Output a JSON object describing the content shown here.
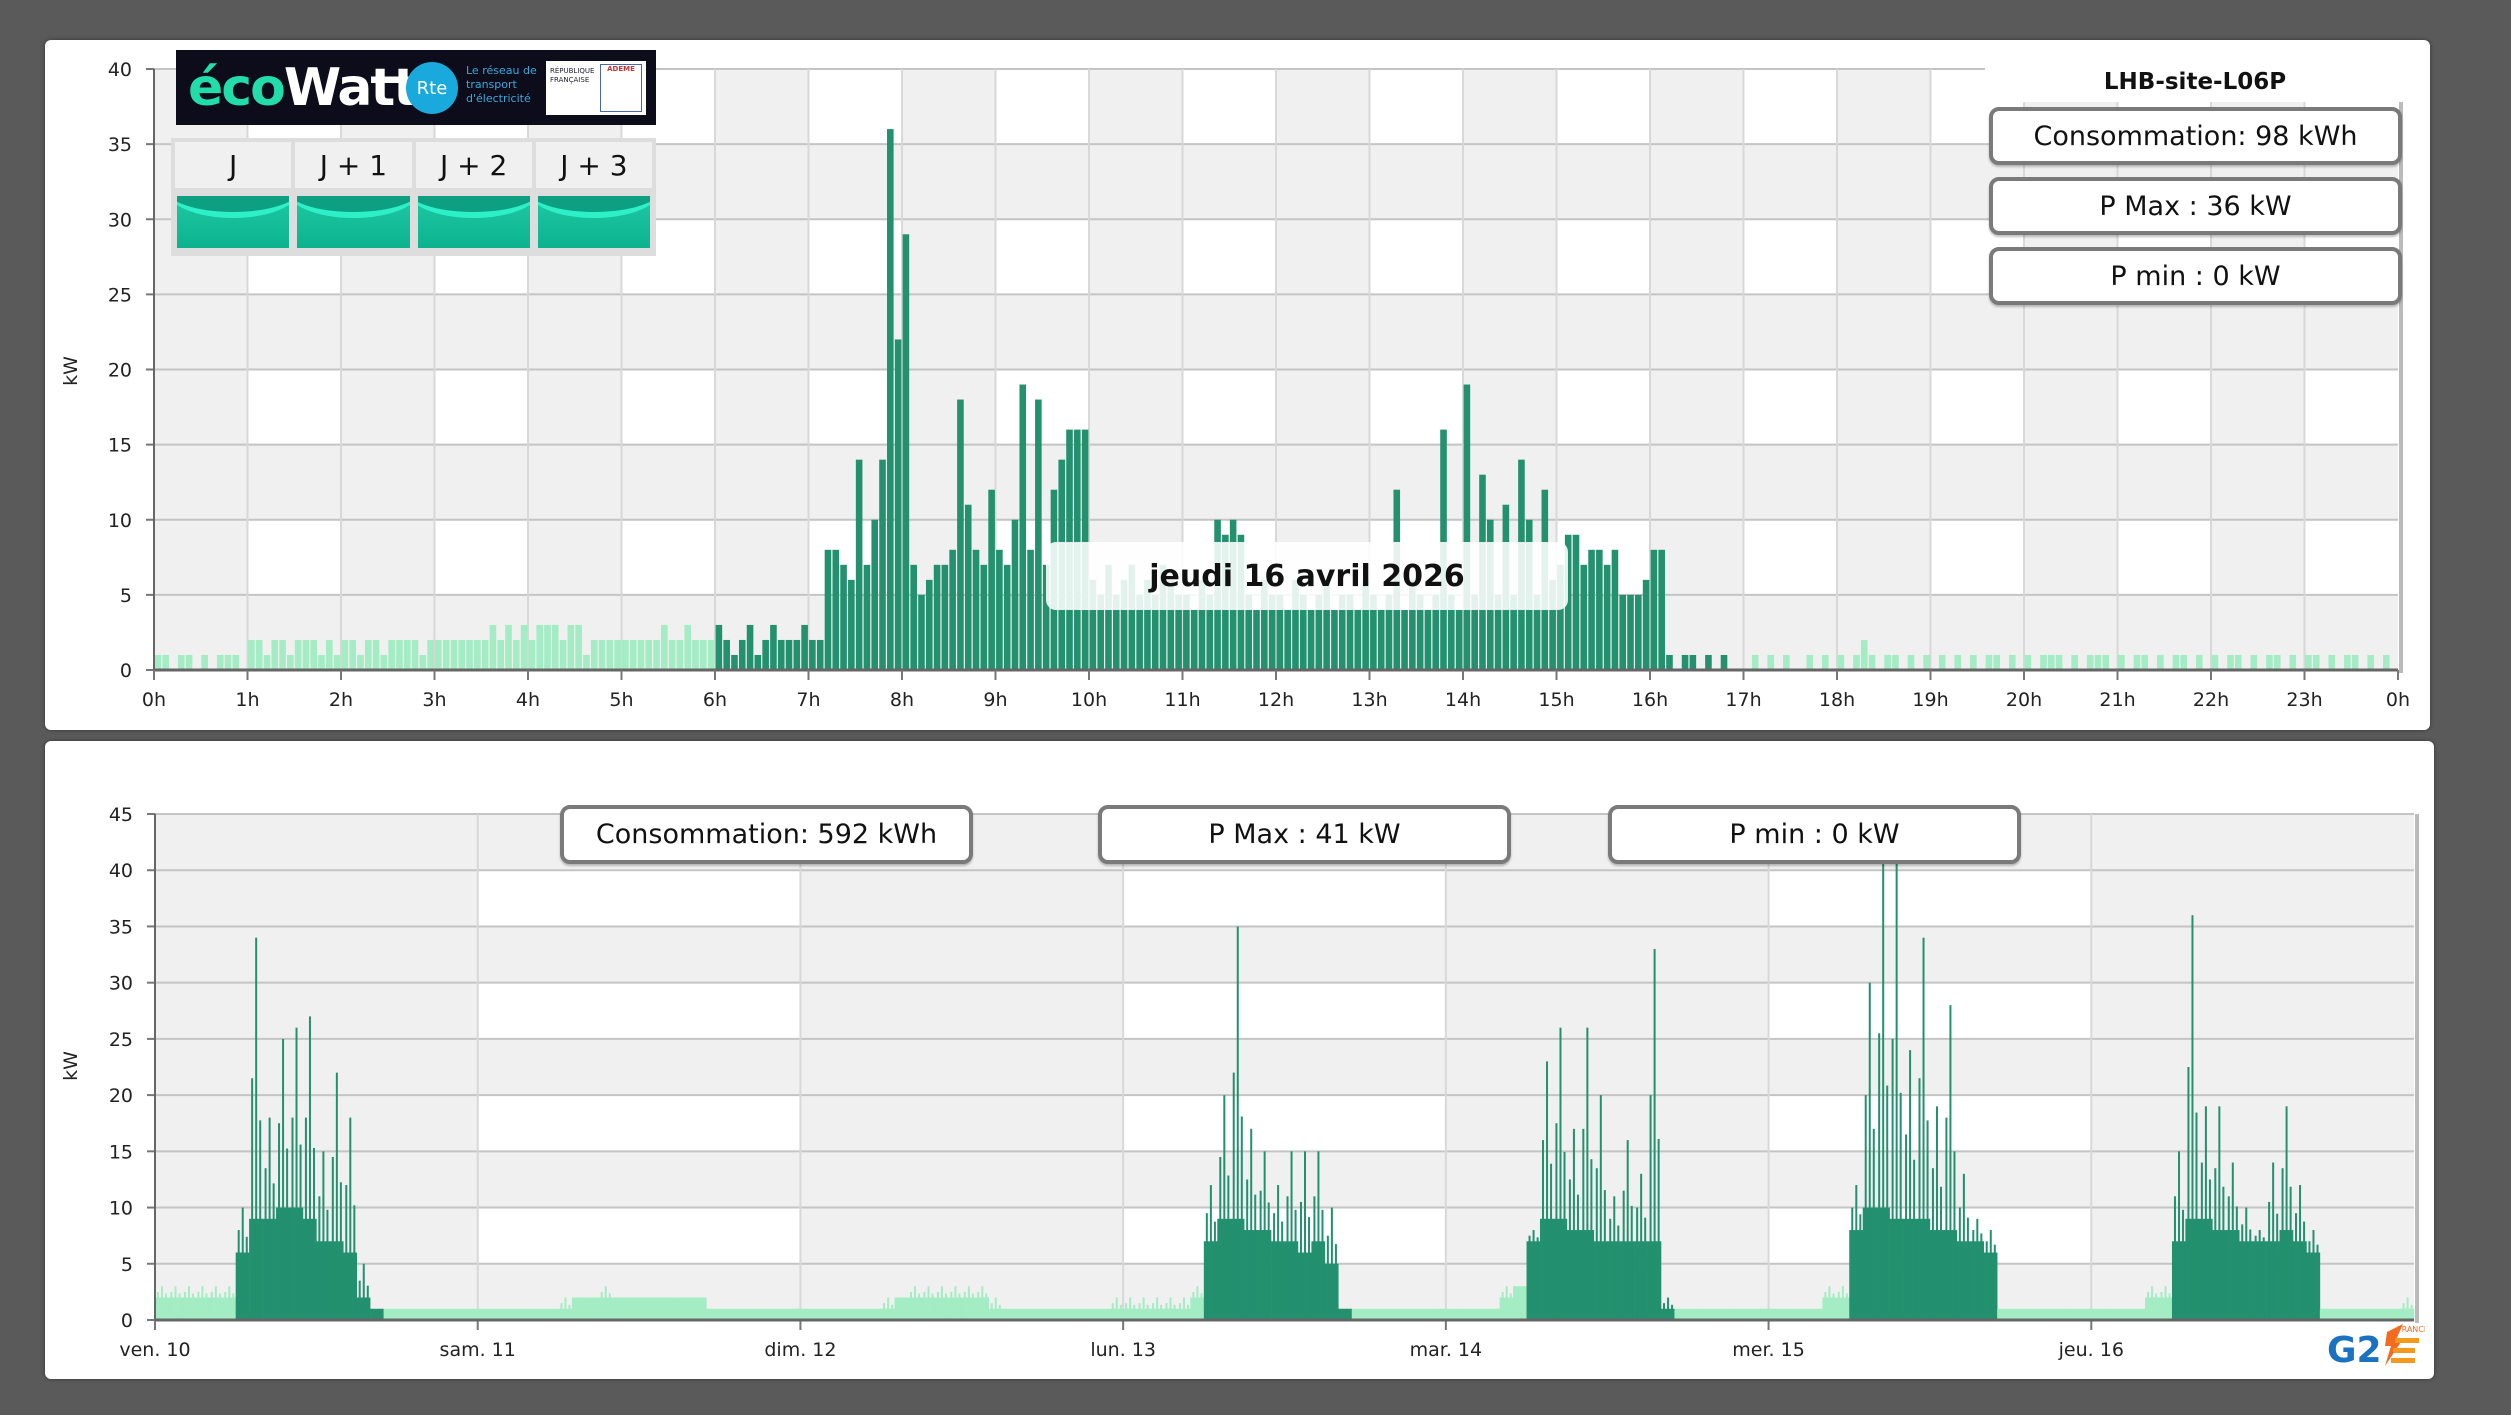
{
  "ecowatt": {
    "brand": "écoWatt",
    "rte_logo": "Rte",
    "rte_tagline": "Le réseau de transport d'électricité",
    "republique": "RÉPUBLIQUE FRANÇAISE",
    "ademe": "ADEME",
    "days": [
      {
        "label": "J",
        "signal": "green"
      },
      {
        "label": "J + 1",
        "signal": "green"
      },
      {
        "label": "J + 2",
        "signal": "green"
      },
      {
        "label": "J + 3",
        "signal": "green"
      }
    ]
  },
  "site": {
    "name": "LHB-site-L06P"
  },
  "daily_stats": {
    "consumption": "Consommation: 98 kWh",
    "pmax": "P Max :  36 kW",
    "pmin": "P min : 0 kW"
  },
  "date_tooltip": "jeudi 16 avril 2026",
  "weekly_stats": {
    "consumption": "Consommation: 592 kWh",
    "pmax": "P Max :  41 kW",
    "pmin": "P min : 0 kW"
  },
  "footer_logo": "G2E FRANCE",
  "colors": {
    "active": "#23906e",
    "idle": "#a3ecc4",
    "band": "#f0f0f0"
  },
  "chart_data": [
    {
      "type": "bar",
      "title": "Daily load curve",
      "ylabel": "kW",
      "ylim": [
        0,
        40
      ],
      "yticks": [
        "0",
        "5",
        "10",
        "15",
        "20",
        "25",
        "30",
        "35",
        "40"
      ],
      "xticks": [
        "0h",
        "1h",
        "2h",
        "3h",
        "4h",
        "5h",
        "6h",
        "7h",
        "8h",
        "9h",
        "10h",
        "11h",
        "12h",
        "13h",
        "14h",
        "15h",
        "16h",
        "17h",
        "18h",
        "19h",
        "20h",
        "21h",
        "22h",
        "23h",
        "0h"
      ],
      "interval_minutes": 5,
      "active_hours": [
        6,
        17
      ],
      "hourly_values": [
        [
          1,
          1,
          0,
          1,
          1,
          0,
          1,
          0,
          1,
          1,
          1,
          0
        ],
        [
          2,
          2,
          1,
          2,
          2,
          1,
          2,
          2,
          2,
          1,
          2,
          1
        ],
        [
          2,
          2,
          1,
          2,
          2,
          1,
          2,
          2,
          2,
          2,
          1,
          2
        ],
        [
          2,
          2,
          2,
          2,
          2,
          2,
          2,
          3,
          2,
          3,
          2,
          3
        ],
        [
          2,
          3,
          3,
          3,
          2,
          3,
          3,
          1,
          2,
          2,
          2,
          2
        ],
        [
          2,
          2,
          2,
          2,
          2,
          3,
          2,
          2,
          3,
          2,
          2,
          2
        ],
        [
          3,
          2,
          1,
          2,
          3,
          1,
          2,
          3,
          2,
          2,
          2,
          3
        ],
        [
          2,
          2,
          8,
          8,
          7,
          6,
          14,
          7,
          10,
          14,
          36,
          22
        ],
        [
          29,
          7,
          5,
          6,
          7,
          7,
          8,
          18,
          11,
          8,
          7,
          12
        ],
        [
          8,
          7,
          10,
          19,
          8,
          18,
          7,
          12,
          14,
          16,
          16,
          16
        ],
        [
          6,
          5,
          7,
          5,
          6,
          7,
          5,
          6,
          5,
          7,
          6,
          5
        ],
        [
          5,
          4,
          6,
          5,
          10,
          9,
          10,
          9,
          5,
          4,
          6,
          5
        ],
        [
          5,
          4,
          6,
          5,
          4,
          5,
          6,
          4,
          5,
          5,
          4,
          6
        ],
        [
          5,
          4,
          5,
          12,
          4,
          6,
          5,
          4,
          5,
          16,
          5,
          4
        ],
        [
          19,
          5,
          13,
          10,
          5,
          11,
          5,
          14,
          10,
          5,
          12,
          6
        ],
        [
          7,
          9,
          9,
          7,
          8,
          8,
          7,
          8,
          5,
          5,
          5,
          6
        ],
        [
          8,
          8,
          1,
          0,
          1,
          1,
          0,
          1,
          0,
          1,
          0,
          0
        ],
        [
          0,
          1,
          0,
          1,
          0,
          1,
          0,
          0,
          1,
          0,
          1,
          0
        ],
        [
          1,
          0,
          1,
          2,
          1,
          0,
          1,
          1,
          0,
          1,
          0,
          1
        ],
        [
          0,
          1,
          0,
          1,
          0,
          1,
          0,
          1,
          1,
          0,
          1,
          0
        ],
        [
          1,
          0,
          1,
          1,
          1,
          0,
          1,
          0,
          1,
          1,
          1,
          0
        ],
        [
          1,
          0,
          1,
          1,
          0,
          1,
          0,
          1,
          1,
          0,
          1,
          0
        ],
        [
          1,
          0,
          1,
          1,
          0,
          1,
          0,
          1,
          1,
          0,
          1,
          0
        ],
        [
          1,
          1,
          0,
          1,
          0,
          1,
          1,
          0,
          1,
          0,
          1,
          0
        ]
      ]
    },
    {
      "type": "bar",
      "title": "Weekly load curve",
      "ylabel": "kW",
      "ylim": [
        0,
        45
      ],
      "yticks": [
        "0",
        "5",
        "10",
        "15",
        "20",
        "25",
        "30",
        "35",
        "40",
        "45"
      ],
      "active_hours": [
        6,
        16
      ],
      "days": [
        {
          "label": "ven. 10",
          "workday": true,
          "hourly_avg": [
            2,
            2,
            2,
            2,
            2,
            2,
            6,
            9,
            9,
            10,
            10,
            9,
            7,
            7,
            6,
            2,
            1,
            1,
            1,
            1,
            1,
            1,
            1,
            1
          ],
          "hourly_peak": [
            3,
            3,
            3,
            3,
            3,
            3,
            10,
            34,
            18,
            25,
            26,
            27,
            15,
            22,
            18,
            5,
            1,
            1,
            1,
            1,
            1,
            1,
            1,
            1
          ]
        },
        {
          "label": "sam. 11",
          "workday": false,
          "hourly_avg": [
            1,
            1,
            1,
            1,
            1,
            1,
            1,
            2,
            2,
            2,
            2,
            2,
            2,
            2,
            2,
            2,
            2,
            1,
            1,
            1,
            1,
            1,
            1,
            1
          ],
          "hourly_peak": [
            1,
            1,
            1,
            1,
            1,
            1,
            2,
            2,
            2,
            3,
            2,
            2,
            2,
            2,
            2,
            2,
            2,
            1,
            1,
            1,
            1,
            1,
            1,
            1
          ]
        },
        {
          "label": "dim. 12",
          "workday": false,
          "hourly_avg": [
            1,
            1,
            1,
            1,
            1,
            1,
            1,
            2,
            2,
            2,
            2,
            2,
            2,
            2,
            1,
            1,
            1,
            1,
            1,
            1,
            1,
            1,
            1,
            1
          ],
          "hourly_peak": [
            1,
            1,
            1,
            1,
            1,
            1,
            2,
            2,
            3,
            3,
            3,
            3,
            3,
            3,
            2,
            1,
            1,
            1,
            1,
            1,
            1,
            1,
            1,
            2
          ]
        },
        {
          "label": "lun. 13",
          "workday": true,
          "hourly_avg": [
            1,
            1,
            1,
            1,
            1,
            2,
            7,
            9,
            9,
            8,
            8,
            7,
            7,
            6,
            7,
            5,
            1,
            1,
            1,
            1,
            1,
            1,
            1,
            1
          ],
          "hourly_peak": [
            2,
            2,
            2,
            2,
            2,
            3,
            12,
            20,
            35,
            17,
            15,
            12,
            15,
            15,
            15,
            10,
            1,
            1,
            1,
            1,
            1,
            1,
            1,
            1
          ]
        },
        {
          "label": "mar. 14",
          "workday": true,
          "hourly_avg": [
            1,
            1,
            1,
            1,
            2,
            3,
            7,
            9,
            9,
            8,
            8,
            7,
            7,
            7,
            7,
            7,
            1,
            1,
            1,
            1,
            1,
            1,
            1,
            1
          ],
          "hourly_peak": [
            1,
            1,
            1,
            1,
            3,
            3,
            8,
            23,
            26,
            17,
            26,
            20,
            11,
            16,
            13,
            33,
            2,
            1,
            1,
            1,
            1,
            1,
            1,
            1
          ]
        },
        {
          "label": "mer. 15",
          "workday": true,
          "hourly_avg": [
            1,
            1,
            1,
            1,
            2,
            2,
            8,
            10,
            10,
            9,
            9,
            9,
            8,
            8,
            7,
            7,
            6,
            1,
            1,
            1,
            1,
            1,
            1,
            1
          ],
          "hourly_peak": [
            1,
            1,
            1,
            1,
            3,
            3,
            12,
            30,
            41,
            41,
            24,
            34,
            19,
            28,
            13,
            9,
            8,
            1,
            1,
            1,
            1,
            1,
            1,
            1
          ]
        },
        {
          "label": "jeu. 16",
          "workday": true,
          "hourly_avg": [
            1,
            1,
            1,
            1,
            2,
            2,
            7,
            9,
            9,
            8,
            8,
            7,
            7,
            7,
            8,
            7,
            6,
            1,
            1,
            1,
            1,
            1,
            1,
            1
          ],
          "hourly_peak": [
            1,
            1,
            1,
            1,
            3,
            3,
            15,
            36,
            19,
            19,
            14,
            10,
            8,
            14,
            19,
            12,
            8,
            1,
            1,
            1,
            1,
            1,
            1,
            2
          ]
        }
      ]
    }
  ]
}
